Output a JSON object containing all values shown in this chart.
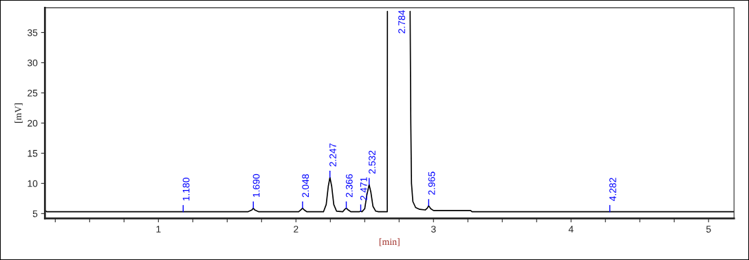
{
  "chart_data": {
    "type": "line",
    "xlabel": "[min]",
    "ylabel": "[mV]",
    "xlim": [
      0.175,
      5.185
    ],
    "ylim": [
      4.2,
      39.1
    ],
    "xticks": [
      {
        "value": 0.25,
        "label": null
      },
      {
        "value": 0.5,
        "label": null
      },
      {
        "value": 0.75,
        "label": null
      },
      1,
      {
        "value": 1.25,
        "label": null
      },
      {
        "value": 1.5,
        "label": null
      },
      {
        "value": 1.75,
        "label": null
      },
      2,
      {
        "value": 2.25,
        "label": null
      },
      {
        "value": 2.5,
        "label": null
      },
      {
        "value": 2.75,
        "label": null
      },
      3,
      {
        "value": 3.25,
        "label": null
      },
      {
        "value": 3.5,
        "label": null
      },
      {
        "value": 3.75,
        "label": null
      },
      4,
      {
        "value": 4.25,
        "label": null
      },
      {
        "value": 4.5,
        "label": null
      },
      {
        "value": 4.75,
        "label": null
      },
      5
    ],
    "yticks": [
      5,
      10,
      15,
      20,
      25,
      30,
      35
    ],
    "grid": false,
    "legend": false,
    "marker": "none",
    "line_style": "solid",
    "series": [
      {
        "color": "#000000",
        "x": [
          0.175,
          0.19,
          1.65,
          1.68,
          1.69,
          1.7,
          1.73,
          2.02,
          2.04,
          2.048,
          2.06,
          2.08,
          2.2,
          2.22,
          2.235,
          2.247,
          2.26,
          2.275,
          2.295,
          2.34,
          2.355,
          2.366,
          2.38,
          2.4,
          2.46,
          2.471,
          2.48,
          2.5,
          2.515,
          2.532,
          2.545,
          2.56,
          2.58,
          2.6,
          2.664,
          2.665,
          2.75,
          2.83,
          2.835,
          2.84,
          2.85,
          2.87,
          2.9,
          2.94,
          2.955,
          2.965,
          2.98,
          3.0,
          3.27,
          3.28,
          5.185
        ],
        "values": [
          5.5,
          5.3,
          5.3,
          5.6,
          5.9,
          5.6,
          5.3,
          5.3,
          5.7,
          5.9,
          5.6,
          5.3,
          5.3,
          6.5,
          9.5,
          11.0,
          9.5,
          6.5,
          5.4,
          5.3,
          5.7,
          5.9,
          5.6,
          5.3,
          5.3,
          5.4,
          5.3,
          5.8,
          8.0,
          9.8,
          8.5,
          6.2,
          5.4,
          5.3,
          5.3,
          38.5,
          null,
          38.5,
          20,
          10,
          7,
          6,
          5.7,
          5.6,
          5.9,
          6.3,
          5.8,
          5.5,
          5.5,
          5.3,
          5.3
        ]
      }
    ],
    "annotations": [
      {
        "text": "1.180",
        "x": 1.18,
        "y": 5.3
      },
      {
        "text": "1.690",
        "x": 1.69,
        "y": 5.9
      },
      {
        "text": "2.048",
        "x": 2.048,
        "y": 5.9
      },
      {
        "text": "2.247",
        "x": 2.247,
        "y": 11.0
      },
      {
        "text": "2.366",
        "x": 2.366,
        "y": 5.9
      },
      {
        "text": "2.471",
        "x": 2.471,
        "y": 5.4
      },
      {
        "text": "2.532",
        "x": 2.532,
        "y": 9.8
      },
      "2.784",
      {
        "text": "2.965",
        "x": 2.965,
        "y": 6.3
      },
      {
        "text": "4.282",
        "x": 4.282,
        "y": 5.3
      }
    ]
  }
}
